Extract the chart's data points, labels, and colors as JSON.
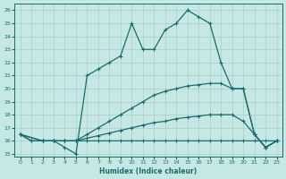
{
  "xlabel": "Humidex (Indice chaleur)",
  "xlim": [
    -0.5,
    23.5
  ],
  "ylim": [
    14.8,
    26.5
  ],
  "yticks": [
    15,
    16,
    17,
    18,
    19,
    20,
    21,
    22,
    23,
    24,
    25,
    26
  ],
  "xticks": [
    0,
    1,
    2,
    3,
    4,
    5,
    6,
    7,
    8,
    9,
    10,
    11,
    12,
    13,
    14,
    15,
    16,
    17,
    18,
    19,
    20,
    21,
    22,
    23
  ],
  "bg_color": "#c5e8e5",
  "line_color": "#1a6b6b",
  "grid_color": "#a8cece",
  "line1": {
    "x": [
      0,
      1,
      2,
      3,
      4,
      5,
      6,
      7,
      8,
      9,
      10,
      11,
      12,
      13,
      14,
      15,
      16,
      17,
      18,
      19,
      20,
      21,
      22,
      23
    ],
    "y": [
      16.5,
      16.0,
      16.0,
      16.0,
      16.0,
      16.0,
      16.0,
      16.0,
      16.0,
      16.0,
      16.0,
      16.0,
      16.0,
      16.0,
      16.0,
      16.0,
      16.0,
      16.0,
      16.0,
      16.0,
      16.0,
      16.0,
      16.0,
      16.0
    ]
  },
  "line2": {
    "x": [
      0,
      2,
      3,
      4,
      5,
      6,
      7,
      8,
      9,
      10,
      11,
      12,
      13,
      14,
      15,
      16,
      17,
      18,
      19,
      20,
      21,
      22,
      23
    ],
    "y": [
      16.5,
      16.0,
      16.0,
      16.0,
      16.0,
      16.2,
      16.4,
      16.6,
      16.8,
      17.0,
      17.2,
      17.4,
      17.5,
      17.7,
      17.8,
      17.9,
      18.0,
      18.0,
      18.0,
      17.5,
      16.5,
      15.5,
      16.0
    ]
  },
  "line3": {
    "x": [
      0,
      2,
      3,
      4,
      5,
      6,
      7,
      8,
      9,
      10,
      11,
      12,
      13,
      14,
      15,
      16,
      17,
      18,
      19,
      20,
      21,
      22,
      23
    ],
    "y": [
      16.5,
      16.0,
      16.0,
      16.0,
      16.0,
      16.5,
      17.0,
      17.5,
      18.0,
      18.5,
      19.0,
      19.5,
      19.8,
      20.0,
      20.2,
      20.3,
      20.4,
      20.4,
      20.0,
      20.0,
      16.5,
      15.5,
      16.0
    ]
  },
  "line4": {
    "x": [
      0,
      1,
      2,
      3,
      4,
      5,
      6,
      7,
      8,
      9,
      10,
      11,
      12,
      13,
      14,
      15,
      16,
      17,
      18,
      19,
      20,
      21,
      22,
      23
    ],
    "y": [
      16.5,
      16.0,
      16.0,
      16.0,
      15.5,
      15.0,
      21.0,
      21.5,
      22.0,
      22.5,
      25.0,
      23.0,
      23.0,
      24.5,
      25.0,
      26.0,
      25.5,
      25.0,
      22.0,
      20.0,
      20.0,
      16.5,
      15.5,
      16.0
    ]
  }
}
